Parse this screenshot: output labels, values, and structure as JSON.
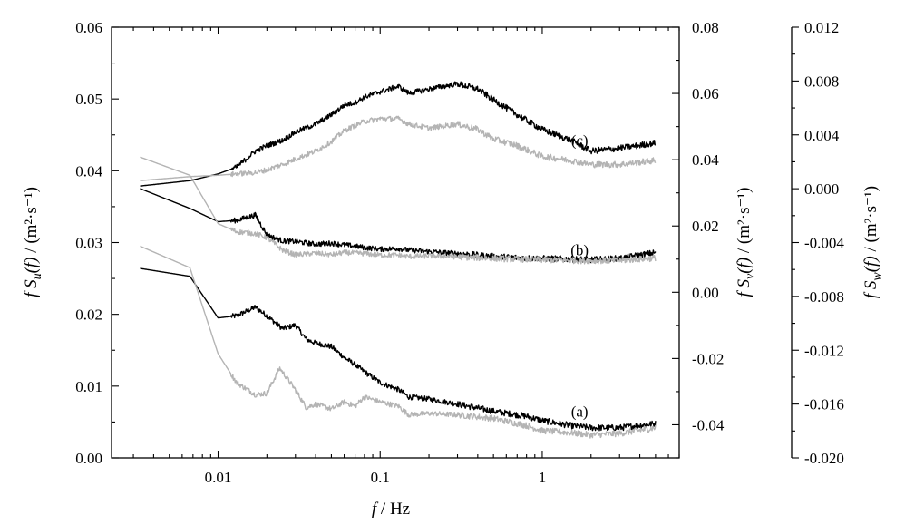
{
  "chart_data": {
    "type": "line",
    "x_scale": "log",
    "xlabel": "f / Hz",
    "xlim": [
      0.0022,
      7
    ],
    "x_ticks": [
      0.01,
      0.1,
      1
    ],
    "x_tick_labels": [
      "0.01",
      "0.1",
      "1"
    ],
    "axes": {
      "u": {
        "label": "f S_u(f) / (m²·s⁻¹)",
        "ylim": [
          0,
          0.06
        ],
        "ticks": [
          0,
          0.01,
          0.02,
          0.03,
          0.04,
          0.05,
          0.06
        ],
        "tick_labels": [
          "0.00",
          "0.01",
          "0.02",
          "0.03",
          "0.04",
          "0.05",
          "0.06"
        ]
      },
      "v": {
        "label": "f S_v(f) / (m²·s⁻¹)",
        "ylim": [
          -0.05,
          0.08
        ],
        "ticks": [
          -0.04,
          -0.02,
          0,
          0.02,
          0.04,
          0.06,
          0.08
        ],
        "tick_labels": [
          "-0.04",
          "-0.02",
          "0.00",
          "0.02",
          "0.04",
          "0.06",
          "0.08"
        ]
      },
      "w": {
        "label": "f S_w(f) / (m²·s⁻¹)",
        "ylim": [
          -0.02,
          0.012
        ],
        "ticks": [
          -0.02,
          -0.016,
          -0.012,
          -0.008,
          -0.004,
          0,
          0.004,
          0.008,
          0.012
        ],
        "tick_labels": [
          "-0.020",
          "-0.016",
          "-0.012",
          "-0.008",
          "-0.004",
          "0.000",
          "0.004",
          "0.008",
          "0.012"
        ]
      }
    },
    "curve_labels": [
      {
        "text": "(a)",
        "axis": "u",
        "x": 1.7,
        "y": 0.0065
      },
      {
        "text": "(b)",
        "axis": "v",
        "x": 1.7,
        "y": 0.0128
      },
      {
        "text": "(c)",
        "axis": "w",
        "x": 1.7,
        "y": 0.0036
      }
    ],
    "series": [
      {
        "axis": "u",
        "color": "#000000",
        "x": [
          0.0033,
          0.0067,
          0.01,
          0.013,
          0.017,
          0.02,
          0.025,
          0.03,
          0.035,
          0.04,
          0.05,
          0.06,
          0.07,
          0.08,
          0.1,
          0.13,
          0.15,
          0.2,
          0.3,
          0.5,
          0.8,
          1.0,
          1.5,
          2,
          3,
          5
        ],
        "y": [
          0.0264,
          0.0253,
          0.0195,
          0.0198,
          0.021,
          0.0198,
          0.018,
          0.0185,
          0.0165,
          0.016,
          0.0155,
          0.014,
          0.013,
          0.012,
          0.0105,
          0.0095,
          0.0085,
          0.0082,
          0.0075,
          0.0065,
          0.0058,
          0.0052,
          0.0045,
          0.0042,
          0.0042,
          0.0048
        ]
      },
      {
        "axis": "u",
        "color": "#b4b4b4",
        "x": [
          0.0033,
          0.0067,
          0.01,
          0.013,
          0.017,
          0.02,
          0.024,
          0.03,
          0.035,
          0.04,
          0.05,
          0.06,
          0.07,
          0.08,
          0.1,
          0.13,
          0.15,
          0.2,
          0.3,
          0.5,
          0.8,
          1.0,
          1.5,
          2,
          3,
          5
        ],
        "y": [
          0.0295,
          0.0265,
          0.0145,
          0.0105,
          0.0088,
          0.009,
          0.0125,
          0.0095,
          0.007,
          0.0075,
          0.0068,
          0.0078,
          0.0072,
          0.0085,
          0.0078,
          0.0072,
          0.006,
          0.0062,
          0.006,
          0.0055,
          0.0045,
          0.0038,
          0.0035,
          0.0032,
          0.0034,
          0.0042
        ]
      },
      {
        "axis": "v",
        "color": "#000000",
        "x": [
          0.0033,
          0.0067,
          0.01,
          0.013,
          0.017,
          0.02,
          0.025,
          0.03,
          0.04,
          0.05,
          0.06,
          0.08,
          0.1,
          0.13,
          0.15,
          0.2,
          0.3,
          0.5,
          0.8,
          1.0,
          1.5,
          2,
          3,
          5
        ],
        "y": [
          0.0313,
          0.0253,
          0.0213,
          0.0217,
          0.0233,
          0.0173,
          0.0155,
          0.0153,
          0.0145,
          0.0148,
          0.0143,
          0.0135,
          0.013,
          0.0132,
          0.0127,
          0.0123,
          0.0117,
          0.0108,
          0.0103,
          0.0102,
          0.01,
          0.0098,
          0.0102,
          0.012
        ]
      },
      {
        "axis": "v",
        "color": "#b4b4b4",
        "x": [
          0.0033,
          0.0067,
          0.01,
          0.013,
          0.017,
          0.02,
          0.025,
          0.03,
          0.04,
          0.05,
          0.06,
          0.08,
          0.1,
          0.13,
          0.15,
          0.2,
          0.3,
          0.5,
          0.8,
          1.0,
          1.5,
          2,
          3,
          5
        ],
        "y": [
          0.0408,
          0.0353,
          0.0207,
          0.0183,
          0.0177,
          0.0165,
          0.0127,
          0.0113,
          0.0118,
          0.0113,
          0.012,
          0.0117,
          0.0112,
          0.0112,
          0.0108,
          0.011,
          0.0107,
          0.0102,
          0.0099,
          0.0098,
          0.0096,
          0.0095,
          0.0096,
          0.0103
        ]
      },
      {
        "axis": "w",
        "color": "#000000",
        "x": [
          0.0033,
          0.0067,
          0.01,
          0.013,
          0.017,
          0.02,
          0.025,
          0.03,
          0.04,
          0.05,
          0.06,
          0.07,
          0.08,
          0.1,
          0.13,
          0.15,
          0.2,
          0.3,
          0.4,
          0.5,
          0.7,
          1.0,
          1.5,
          2,
          3,
          5
        ],
        "y": [
          0.0002,
          0.0006,
          0.0011,
          0.0016,
          0.0028,
          0.0032,
          0.0036,
          0.0042,
          0.0048,
          0.0055,
          0.0062,
          0.0064,
          0.0068,
          0.0072,
          0.0076,
          0.0071,
          0.0074,
          0.0078,
          0.0074,
          0.0066,
          0.0055,
          0.0044,
          0.0036,
          0.0028,
          0.003,
          0.0034
        ]
      },
      {
        "axis": "w",
        "color": "#b4b4b4",
        "x": [
          0.0033,
          0.0067,
          0.01,
          0.013,
          0.017,
          0.02,
          0.025,
          0.03,
          0.04,
          0.05,
          0.06,
          0.07,
          0.08,
          0.1,
          0.13,
          0.15,
          0.2,
          0.3,
          0.4,
          0.5,
          0.7,
          1.0,
          1.5,
          2,
          3,
          5
        ],
        "y": [
          0.0006,
          0.0009,
          0.001,
          0.0011,
          0.0012,
          0.0014,
          0.0018,
          0.0022,
          0.0028,
          0.0035,
          0.0043,
          0.0047,
          0.005,
          0.0052,
          0.0052,
          0.0048,
          0.0045,
          0.0048,
          0.0044,
          0.0037,
          0.0032,
          0.0024,
          0.0021,
          0.0018,
          0.0018,
          0.0021
        ]
      }
    ]
  }
}
